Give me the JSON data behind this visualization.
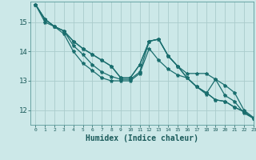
{
  "background_color": "#cce8e8",
  "grid_color": "#aacccc",
  "line_color": "#1a6e6e",
  "marker_color": "#1a6e6e",
  "xlabel": "Humidex (Indice chaleur)",
  "xlim": [
    -0.5,
    23
  ],
  "ylim": [
    11.5,
    15.7
  ],
  "yticks": [
    12,
    13,
    14,
    15
  ],
  "xticks": [
    0,
    1,
    2,
    3,
    4,
    5,
    6,
    7,
    8,
    9,
    10,
    11,
    12,
    13,
    14,
    15,
    16,
    17,
    18,
    19,
    20,
    21,
    22,
    23
  ],
  "series": [
    [
      15.6,
      15.1,
      14.85,
      14.7,
      14.2,
      13.9,
      13.55,
      13.3,
      13.15,
      13.05,
      13.05,
      13.3,
      14.35,
      14.42,
      13.85,
      13.5,
      13.25,
      13.25,
      13.25,
      13.05,
      12.85,
      12.6,
      12.0,
      11.75
    ],
    [
      15.6,
      15.1,
      14.85,
      14.7,
      14.35,
      14.1,
      13.9,
      13.7,
      13.5,
      13.1,
      13.1,
      13.55,
      14.35,
      14.42,
      13.85,
      13.5,
      13.1,
      12.8,
      12.6,
      12.35,
      12.3,
      12.1,
      11.95,
      11.72
    ],
    [
      15.6,
      15.1,
      14.85,
      14.7,
      14.35,
      14.1,
      13.9,
      13.7,
      13.5,
      13.1,
      13.1,
      13.55,
      14.35,
      14.42,
      13.85,
      13.5,
      13.1,
      12.8,
      12.6,
      12.35,
      12.3,
      12.1,
      11.95,
      11.72
    ],
    [
      15.6,
      15.0,
      14.85,
      14.6,
      14.0,
      13.6,
      13.35,
      13.1,
      13.0,
      13.0,
      13.0,
      13.25,
      14.1,
      13.7,
      13.4,
      13.2,
      13.1,
      12.8,
      12.55,
      13.05,
      12.5,
      12.3,
      11.9,
      11.72
    ]
  ],
  "xlabel_fontsize": 7,
  "xtick_fontsize": 4.5,
  "ytick_fontsize": 6.5
}
